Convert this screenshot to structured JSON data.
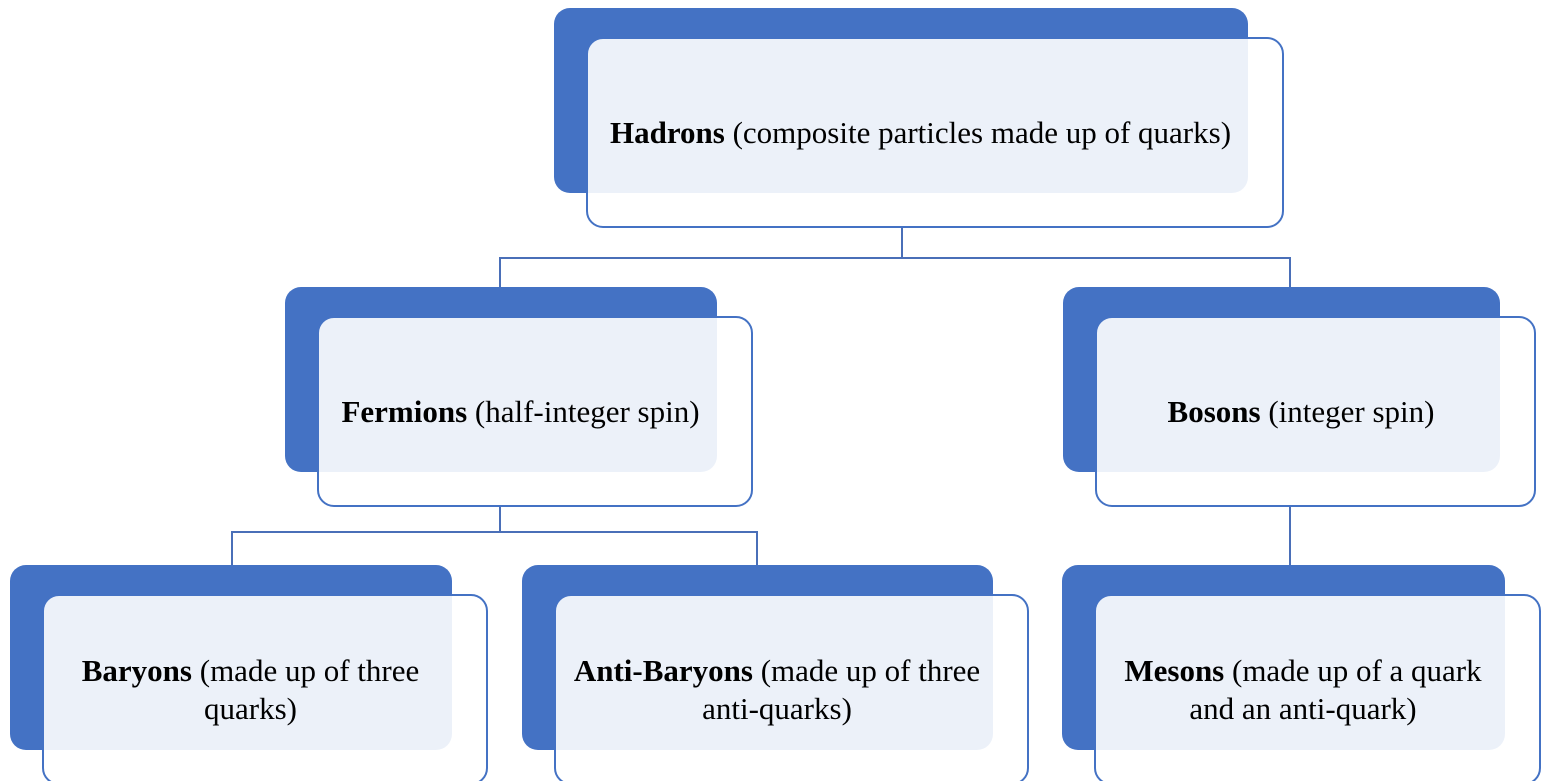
{
  "nodes": [
    {
      "bold": "Hadrons",
      "text": "(composite particles made up of quarks)"
    },
    {
      "bold": "Fermions",
      "text": "(half-integer spin)"
    },
    {
      "bold": "Bosons",
      "text": "(integer spin)"
    },
    {
      "bold": "Baryons",
      "text": "(made up of three quarks)"
    },
    {
      "bold": "Anti-Baryons",
      "text": "(made up of three anti-quarks)"
    },
    {
      "bold": "Mesons",
      "text": "(made up of a quark and an anti-quark)"
    }
  ]
}
